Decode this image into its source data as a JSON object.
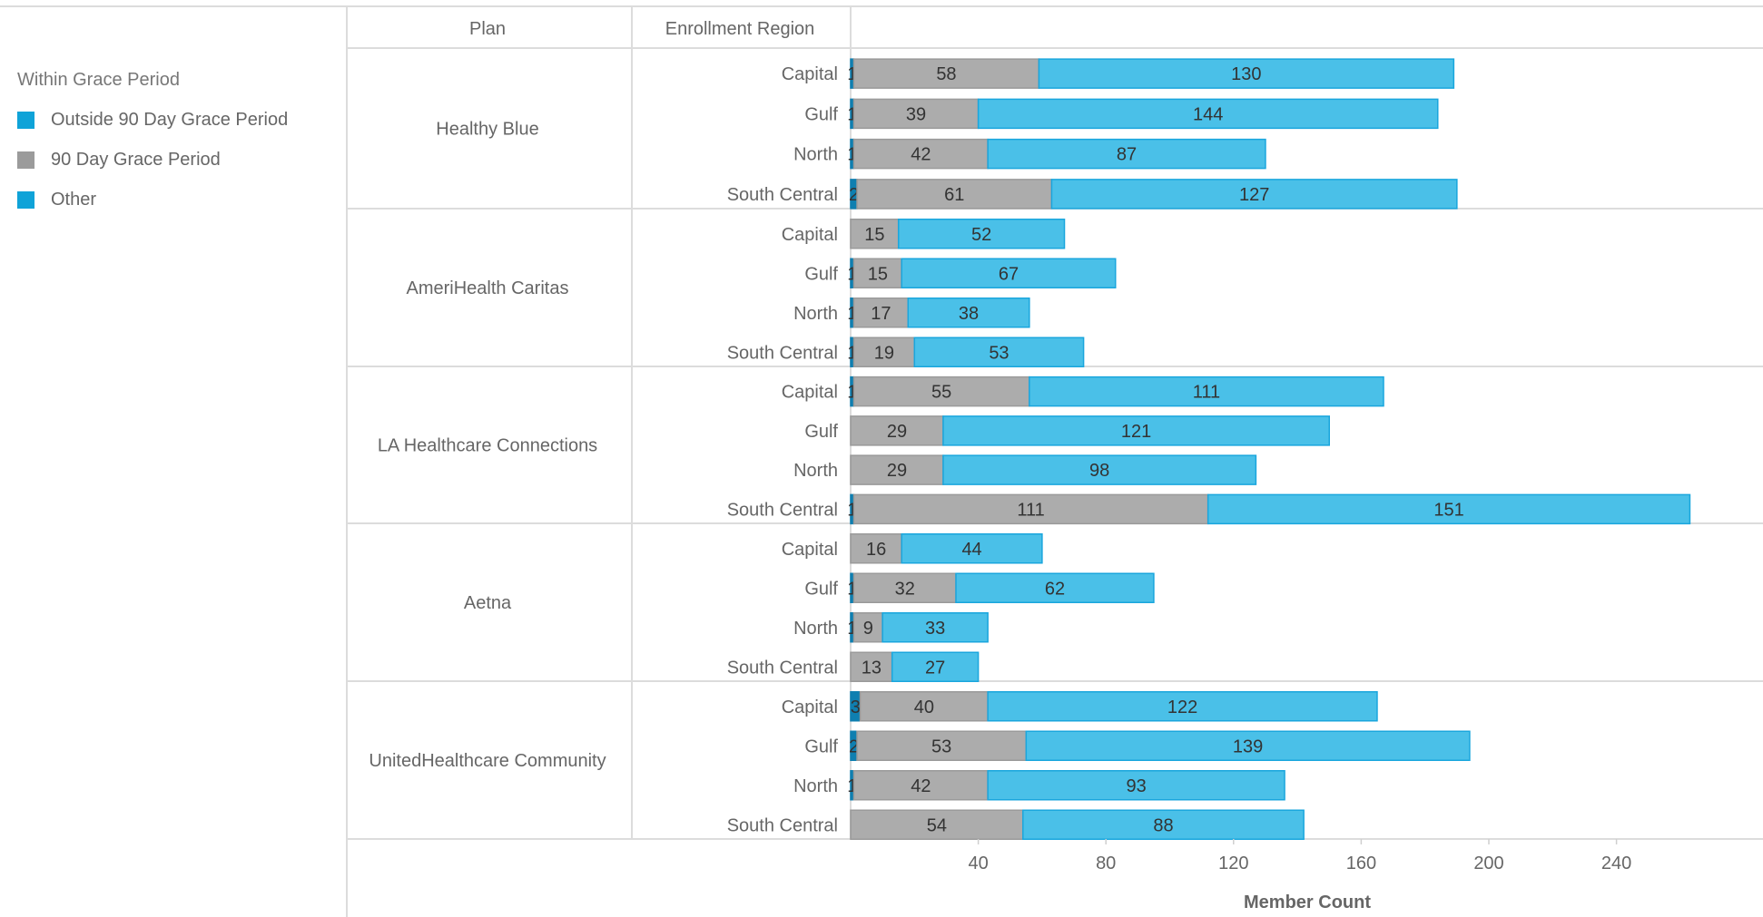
{
  "legend": {
    "title": "Within Grace Period",
    "items": [
      {
        "label": "Outside 90 Day Grace Period",
        "color": "#0fa3d8"
      },
      {
        "label": "90 Day Grace Period",
        "color": "#9b9b9b"
      },
      {
        "label": "Other",
        "color": "#0fa3d8"
      }
    ]
  },
  "table": {
    "plan_header": "Plan",
    "region_header": "Enrollment Region"
  },
  "colors": {
    "outside": "#0f7fb0",
    "grace": "#acacac",
    "other": "#4ac0e8",
    "other_stroke": "#1aa6dd",
    "grace_stroke": "#9a9a9a"
  },
  "chart_data": {
    "type": "bar",
    "orientation": "horizontal",
    "stacked": true,
    "xlabel": "Member Count",
    "x_ticks": [
      40,
      80,
      120,
      160,
      200,
      240
    ],
    "xlim": [
      0,
      284
    ],
    "series_order": [
      "Outside 90 Day Grace Period",
      "90 Day Grace Period",
      "Other"
    ],
    "groups": [
      {
        "plan": "Healthy Blue",
        "rows": [
          {
            "region": "Capital",
            "values": [
              1,
              58,
              130
            ],
            "labels": [
              "1",
              "58",
              "130"
            ]
          },
          {
            "region": "Gulf",
            "values": [
              1,
              39,
              144
            ],
            "labels": [
              "1",
              "39",
              "144"
            ]
          },
          {
            "region": "North",
            "values": [
              1,
              42,
              87
            ],
            "labels": [
              "1",
              "42",
              "87"
            ]
          },
          {
            "region": "South Central",
            "values": [
              2,
              61,
              127
            ],
            "labels": [
              "2",
              "61",
              "127"
            ]
          }
        ]
      },
      {
        "plan": "AmeriHealth Caritas",
        "rows": [
          {
            "region": "Capital",
            "values": [
              0,
              15,
              52
            ],
            "labels": [
              "",
              "15",
              "52"
            ]
          },
          {
            "region": "Gulf",
            "values": [
              1,
              15,
              67
            ],
            "labels": [
              "1",
              "15",
              "67"
            ]
          },
          {
            "region": "North",
            "values": [
              1,
              17,
              38
            ],
            "labels": [
              "1",
              "17",
              "38"
            ]
          },
          {
            "region": "South Central",
            "values": [
              1,
              19,
              53
            ],
            "labels": [
              "1",
              "19",
              "53"
            ]
          }
        ]
      },
      {
        "plan": "LA Healthcare Connections",
        "rows": [
          {
            "region": "Capital",
            "values": [
              1,
              55,
              111
            ],
            "labels": [
              "1",
              "55",
              "111"
            ]
          },
          {
            "region": "Gulf",
            "values": [
              0,
              29,
              121
            ],
            "labels": [
              "",
              "29",
              "121"
            ]
          },
          {
            "region": "North",
            "values": [
              0,
              29,
              98
            ],
            "labels": [
              "",
              "29",
              "98"
            ]
          },
          {
            "region": "South Central",
            "values": [
              1,
              111,
              151
            ],
            "labels": [
              "1",
              "111",
              "151"
            ]
          }
        ]
      },
      {
        "plan": "Aetna",
        "rows": [
          {
            "region": "Capital",
            "values": [
              0,
              16,
              44
            ],
            "labels": [
              "",
              "16",
              "44"
            ]
          },
          {
            "region": "Gulf",
            "values": [
              1,
              32,
              62
            ],
            "labels": [
              "1",
              "32",
              "62"
            ]
          },
          {
            "region": "North",
            "values": [
              1,
              9,
              33
            ],
            "labels": [
              "1",
              "9",
              "33"
            ]
          },
          {
            "region": "South Central",
            "values": [
              0,
              13,
              27
            ],
            "labels": [
              "",
              "13",
              "27"
            ]
          }
        ]
      },
      {
        "plan": "UnitedHealthcare Community",
        "rows": [
          {
            "region": "Capital",
            "values": [
              3,
              40,
              122
            ],
            "labels": [
              "3",
              "40",
              "122"
            ]
          },
          {
            "region": "Gulf",
            "values": [
              2,
              53,
              139
            ],
            "labels": [
              "2",
              "53",
              "139"
            ]
          },
          {
            "region": "North",
            "values": [
              1,
              42,
              93
            ],
            "labels": [
              "1",
              "42",
              "93"
            ]
          },
          {
            "region": "South Central",
            "values": [
              0,
              54,
              88
            ],
            "labels": [
              "",
              "54",
              "88"
            ]
          }
        ]
      }
    ]
  }
}
